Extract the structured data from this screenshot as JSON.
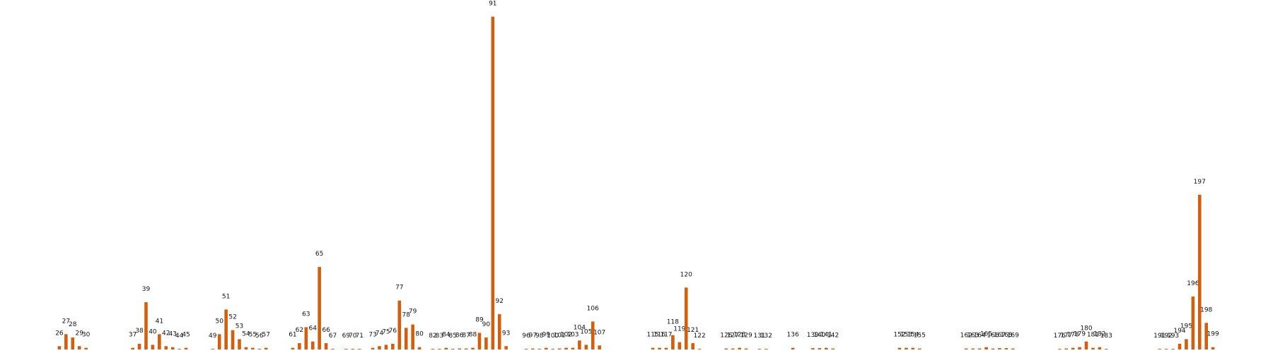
{
  "chart_data": {
    "type": "bar",
    "color": "#d35f0e",
    "xlim": [
      17.1,
      208.0
    ],
    "ylim": [
      0,
      105
    ],
    "x": [
      26,
      27,
      28,
      29,
      30,
      37,
      38,
      39,
      40,
      41,
      42,
      43,
      44,
      45,
      49,
      50,
      51,
      52,
      53,
      54,
      55,
      56,
      57,
      61,
      62,
      63,
      64,
      65,
      66,
      67,
      69,
      70,
      71,
      73,
      74,
      75,
      76,
      77,
      78,
      79,
      80,
      82,
      83,
      84,
      85,
      86,
      87,
      88,
      89,
      90,
      91,
      92,
      93,
      96,
      97,
      98,
      99,
      100,
      101,
      102,
      103,
      104,
      105,
      106,
      107,
      115,
      116,
      117,
      118,
      119,
      120,
      121,
      122,
      126,
      127,
      128,
      129,
      131,
      132,
      136,
      139,
      140,
      141,
      142,
      152,
      153,
      154,
      155,
      162,
      163,
      164,
      165,
      166,
      167,
      168,
      169,
      176,
      177,
      178,
      179,
      180,
      181,
      182,
      183,
      191,
      192,
      193,
      194,
      195,
      196,
      197,
      198,
      199
    ],
    "values": [
      1,
      4.6,
      3.6,
      1,
      0.5,
      0.5,
      1.7,
      14.2,
      1.4,
      4.6,
      1,
      0.7,
      0.2,
      0.5,
      0.2,
      4.6,
      12,
      5.8,
      3.1,
      0.7,
      0.5,
      0.2,
      0.5,
      0.5,
      1.9,
      6.7,
      2.4,
      24.8,
      1.9,
      0.2,
      0.2,
      0.2,
      0.2,
      0.5,
      1,
      1.4,
      1.7,
      14.7,
      6.5,
      7.5,
      0.7,
      0.2,
      0.2,
      0.5,
      0.2,
      0.3,
      0.3,
      0.5,
      5,
      3.6,
      100,
      10.6,
      1,
      0.2,
      0.3,
      0.2,
      0.5,
      0.2,
      0.3,
      0.5,
      0.5,
      2.7,
      1.4,
      8.4,
      1.2,
      0.5,
      0.5,
      0.5,
      4.3,
      2.2,
      18.6,
      1.9,
      0.2,
      0.3,
      0.3,
      0.5,
      0.3,
      0.2,
      0.2,
      0.5,
      0.4,
      0.4,
      0.5,
      0.3,
      0.5,
      0.5,
      0.5,
      0.3,
      0.3,
      0.3,
      0.3,
      0.7,
      0.3,
      0.4,
      0.4,
      0.3,
      0.2,
      0.3,
      0.5,
      0.7,
      2.4,
      0.5,
      0.7,
      0.2,
      0.2,
      0.2,
      0.2,
      1.7,
      3.1,
      15.9,
      46.5,
      8,
      0.7
    ]
  }
}
